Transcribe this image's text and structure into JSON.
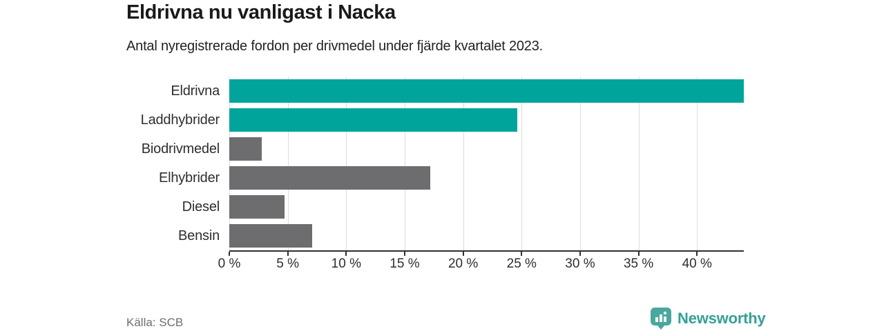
{
  "title": "Eldrivna nu vanligast i Nacka",
  "subtitle": "Antal nyregistrerade fordon per drivmedel under fjärde kvartalet 2023.",
  "source": "Källa: SCB",
  "brand": {
    "name": "Newsworthy",
    "icon": "newsworthy-logo-icon",
    "icon_color": "#4aa79e",
    "text_color": "#35a096"
  },
  "colors": {
    "highlight_teal": "#00a49b",
    "neutral_gray": "#6d6d70",
    "grid": "#dcdcdc",
    "axis": "#2f2f2f",
    "text": "#2e2e2e"
  },
  "chart_data": {
    "type": "bar",
    "orientation": "horizontal",
    "title": "Eldrivna nu vanligast i Nacka",
    "subtitle": "Antal nyregistrerade fordon per drivmedel under fjärde kvartalet 2023.",
    "categories": [
      "Eldrivna",
      "Laddhybrider",
      "Biodrivmedel",
      "Elhybrider",
      "Diesel",
      "Bensin"
    ],
    "values": [
      44,
      24.6,
      2.8,
      17.2,
      4.7,
      7.1
    ],
    "unit": "%",
    "bar_colors": [
      "#00a49b",
      "#00a49b",
      "#6d6d70",
      "#6d6d70",
      "#6d6d70",
      "#6d6d70"
    ],
    "xlim": [
      0,
      44
    ],
    "x_tick_values": [
      0,
      5,
      10,
      15,
      20,
      25,
      30,
      35,
      40
    ],
    "x_tick_labels": [
      "0 %",
      "5 %",
      "10 %",
      "15 %",
      "20 %",
      "25 %",
      "30 %",
      "35 %",
      "40 %"
    ],
    "grid": true,
    "legend": false,
    "source_label": "Källa: SCB"
  }
}
